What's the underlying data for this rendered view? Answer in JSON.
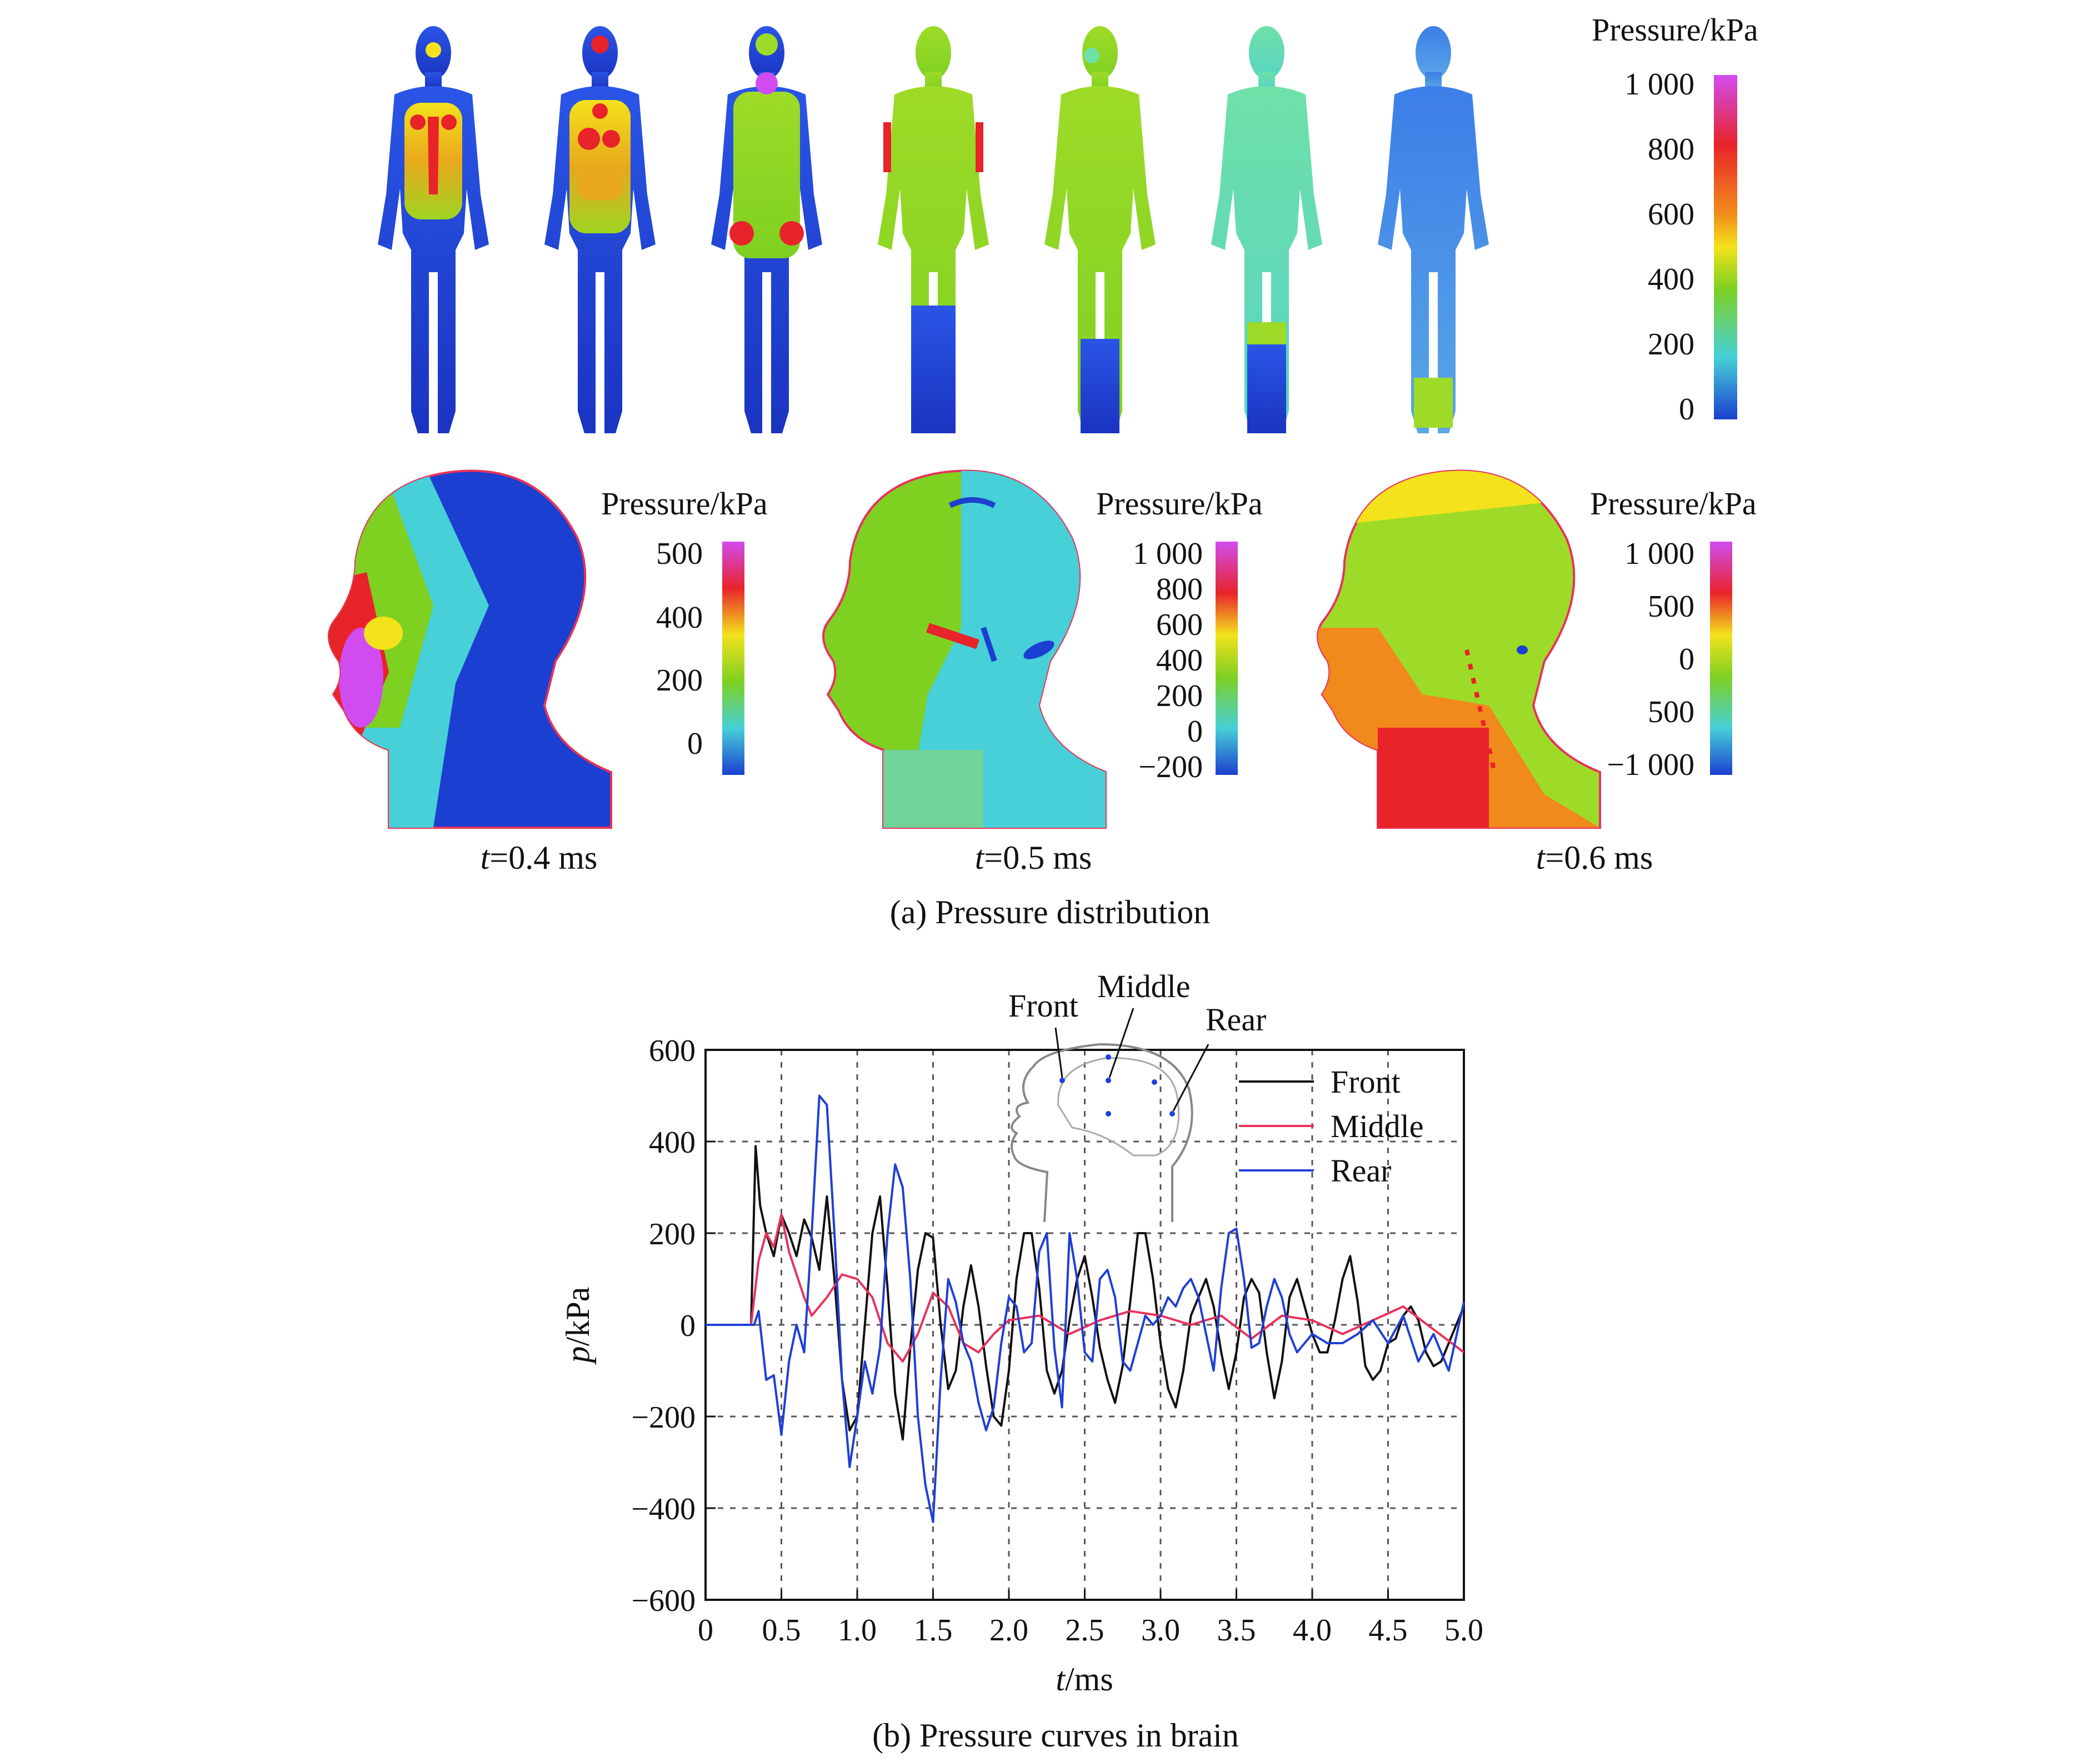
{
  "panel_a": {
    "caption": "(a) Pressure distribution",
    "body_colorbar": {
      "title": "Pressure/kPa",
      "ticks": [
        "1 000",
        "800",
        "600",
        "400",
        "200",
        "0"
      ]
    },
    "head_views": [
      {
        "time_var": "t",
        "time_val": "=0.4 ms",
        "colorbar_title": "Pressure/kPa",
        "ticks": [
          "500",
          "400",
          "200",
          "0"
        ]
      },
      {
        "time_var": "t",
        "time_val": "=0.5 ms",
        "colorbar_title": "Pressure/kPa",
        "ticks": [
          "1 000",
          "800",
          "600",
          "400",
          "200",
          "0",
          "−200"
        ]
      },
      {
        "time_var": "t",
        "time_val": "=0.6 ms",
        "colorbar_title": "Pressure/kPa",
        "ticks": [
          "1 000",
          "500",
          "0",
          "500",
          "−1 000"
        ]
      }
    ]
  },
  "panel_b": {
    "caption": "(b) Pressure curves in brain",
    "inset_labels": {
      "front": "Front",
      "middle": "Middle",
      "rear": "Rear"
    }
  },
  "chart_data": {
    "type": "line",
    "title": "",
    "xlabel_var": "t",
    "xlabel_unit": "/ms",
    "ylabel_var": "p",
    "ylabel_unit": "/kPa",
    "xlim": [
      0,
      5.0
    ],
    "ylim": [
      -600,
      600
    ],
    "xticks": [
      "0",
      "0.5",
      "1.0",
      "1.5",
      "2.0",
      "2.5",
      "3.0",
      "3.5",
      "4.0",
      "4.5",
      "5.0"
    ],
    "yticks": [
      "600",
      "400",
      "200",
      "0",
      "−200",
      "−400",
      "−600"
    ],
    "grid": true,
    "legend_position": "top-right",
    "series": [
      {
        "name": "Front",
        "color": "#111111",
        "x": [
          0,
          0.3,
          0.33,
          0.36,
          0.4,
          0.45,
          0.5,
          0.55,
          0.6,
          0.65,
          0.7,
          0.75,
          0.8,
          0.85,
          0.9,
          0.95,
          1.0,
          1.05,
          1.1,
          1.15,
          1.2,
          1.25,
          1.3,
          1.35,
          1.4,
          1.45,
          1.5,
          1.55,
          1.6,
          1.65,
          1.7,
          1.75,
          1.8,
          1.85,
          1.9,
          1.95,
          2.0,
          2.05,
          2.1,
          2.15,
          2.2,
          2.25,
          2.3,
          2.35,
          2.4,
          2.45,
          2.5,
          2.55,
          2.6,
          2.65,
          2.7,
          2.75,
          2.8,
          2.85,
          2.9,
          2.95,
          3.0,
          3.05,
          3.1,
          3.15,
          3.2,
          3.25,
          3.3,
          3.35,
          3.4,
          3.45,
          3.5,
          3.55,
          3.6,
          3.65,
          3.7,
          3.75,
          3.8,
          3.85,
          3.9,
          3.95,
          4.0,
          4.05,
          4.1,
          4.15,
          4.2,
          4.25,
          4.3,
          4.35,
          4.4,
          4.45,
          4.5,
          4.55,
          4.6,
          4.65,
          4.7,
          4.75,
          4.8,
          4.85,
          4.9,
          4.95,
          5.0
        ],
        "y": [
          0,
          0,
          390,
          260,
          200,
          150,
          240,
          200,
          150,
          230,
          190,
          120,
          280,
          100,
          -120,
          -230,
          -200,
          0,
          200,
          280,
          80,
          -150,
          -250,
          -50,
          120,
          200,
          190,
          0,
          -140,
          -100,
          40,
          130,
          40,
          -90,
          -200,
          -220,
          -100,
          100,
          200,
          200,
          80,
          -100,
          -150,
          -100,
          10,
          100,
          150,
          60,
          -50,
          -120,
          -170,
          -90,
          50,
          200,
          200,
          100,
          -40,
          -140,
          -180,
          -100,
          20,
          60,
          100,
          40,
          -60,
          -140,
          -60,
          60,
          100,
          70,
          -60,
          -160,
          -80,
          60,
          100,
          40,
          -20,
          -60,
          -60,
          10,
          100,
          150,
          50,
          -90,
          -120,
          -100,
          -40,
          -30,
          20,
          40,
          10,
          -60,
          -90,
          -80,
          -40,
          0,
          40
        ]
      },
      {
        "name": "Middle",
        "color": "#e8325a",
        "x": [
          0,
          0.3,
          0.35,
          0.4,
          0.45,
          0.5,
          0.55,
          0.6,
          0.65,
          0.7,
          0.8,
          0.9,
          1.0,
          1.1,
          1.2,
          1.3,
          1.4,
          1.5,
          1.6,
          1.7,
          1.8,
          1.9,
          2.0,
          2.2,
          2.4,
          2.6,
          2.8,
          3.0,
          3.2,
          3.4,
          3.6,
          3.8,
          4.0,
          4.2,
          4.4,
          4.6,
          4.8,
          5.0
        ],
        "y": [
          0,
          0,
          140,
          200,
          170,
          240,
          160,
          110,
          60,
          20,
          60,
          110,
          100,
          60,
          -40,
          -80,
          -20,
          70,
          40,
          -40,
          -60,
          -20,
          10,
          20,
          -20,
          10,
          30,
          20,
          0,
          20,
          -30,
          20,
          10,
          -20,
          10,
          40,
          -10,
          -60
        ]
      },
      {
        "name": "Rear",
        "color": "#1f3fd6",
        "x": [
          0,
          0.32,
          0.35,
          0.4,
          0.45,
          0.5,
          0.55,
          0.6,
          0.65,
          0.7,
          0.75,
          0.8,
          0.85,
          0.9,
          0.95,
          1.0,
          1.05,
          1.1,
          1.15,
          1.2,
          1.25,
          1.3,
          1.35,
          1.4,
          1.45,
          1.5,
          1.55,
          1.6,
          1.65,
          1.7,
          1.75,
          1.8,
          1.85,
          1.9,
          1.95,
          2.0,
          2.05,
          2.1,
          2.15,
          2.2,
          2.25,
          2.3,
          2.35,
          2.4,
          2.45,
          2.5,
          2.55,
          2.6,
          2.65,
          2.7,
          2.75,
          2.8,
          2.85,
          2.9,
          2.95,
          3.0,
          3.05,
          3.1,
          3.15,
          3.2,
          3.25,
          3.3,
          3.35,
          3.4,
          3.45,
          3.5,
          3.55,
          3.6,
          3.65,
          3.7,
          3.75,
          3.8,
          3.85,
          3.9,
          3.95,
          4.0,
          4.1,
          4.2,
          4.3,
          4.4,
          4.5,
          4.6,
          4.7,
          4.8,
          4.9,
          5.0
        ],
        "y": [
          0,
          0,
          30,
          -120,
          -110,
          -240,
          -80,
          0,
          -60,
          200,
          500,
          480,
          200,
          -120,
          -310,
          -200,
          -80,
          -150,
          -50,
          200,
          350,
          300,
          100,
          -200,
          -350,
          -430,
          -120,
          100,
          50,
          -40,
          -80,
          -170,
          -230,
          -180,
          -40,
          60,
          40,
          -60,
          -40,
          160,
          200,
          -50,
          -180,
          200,
          100,
          -60,
          -80,
          100,
          120,
          60,
          -80,
          -100,
          -40,
          20,
          0,
          20,
          60,
          40,
          80,
          100,
          60,
          -20,
          -100,
          80,
          200,
          210,
          100,
          -50,
          -40,
          40,
          100,
          60,
          -20,
          -60,
          -40,
          -20,
          -40,
          -40,
          -20,
          10,
          -40,
          20,
          -80,
          -20,
          -100,
          50
        ]
      }
    ]
  },
  "colors": {
    "cold": "#1b3fd0",
    "cyan": "#47d0d8",
    "green": "#7ed021",
    "yellow": "#f3e21c",
    "red": "#e8232a",
    "magenta": "#d14cf0"
  }
}
